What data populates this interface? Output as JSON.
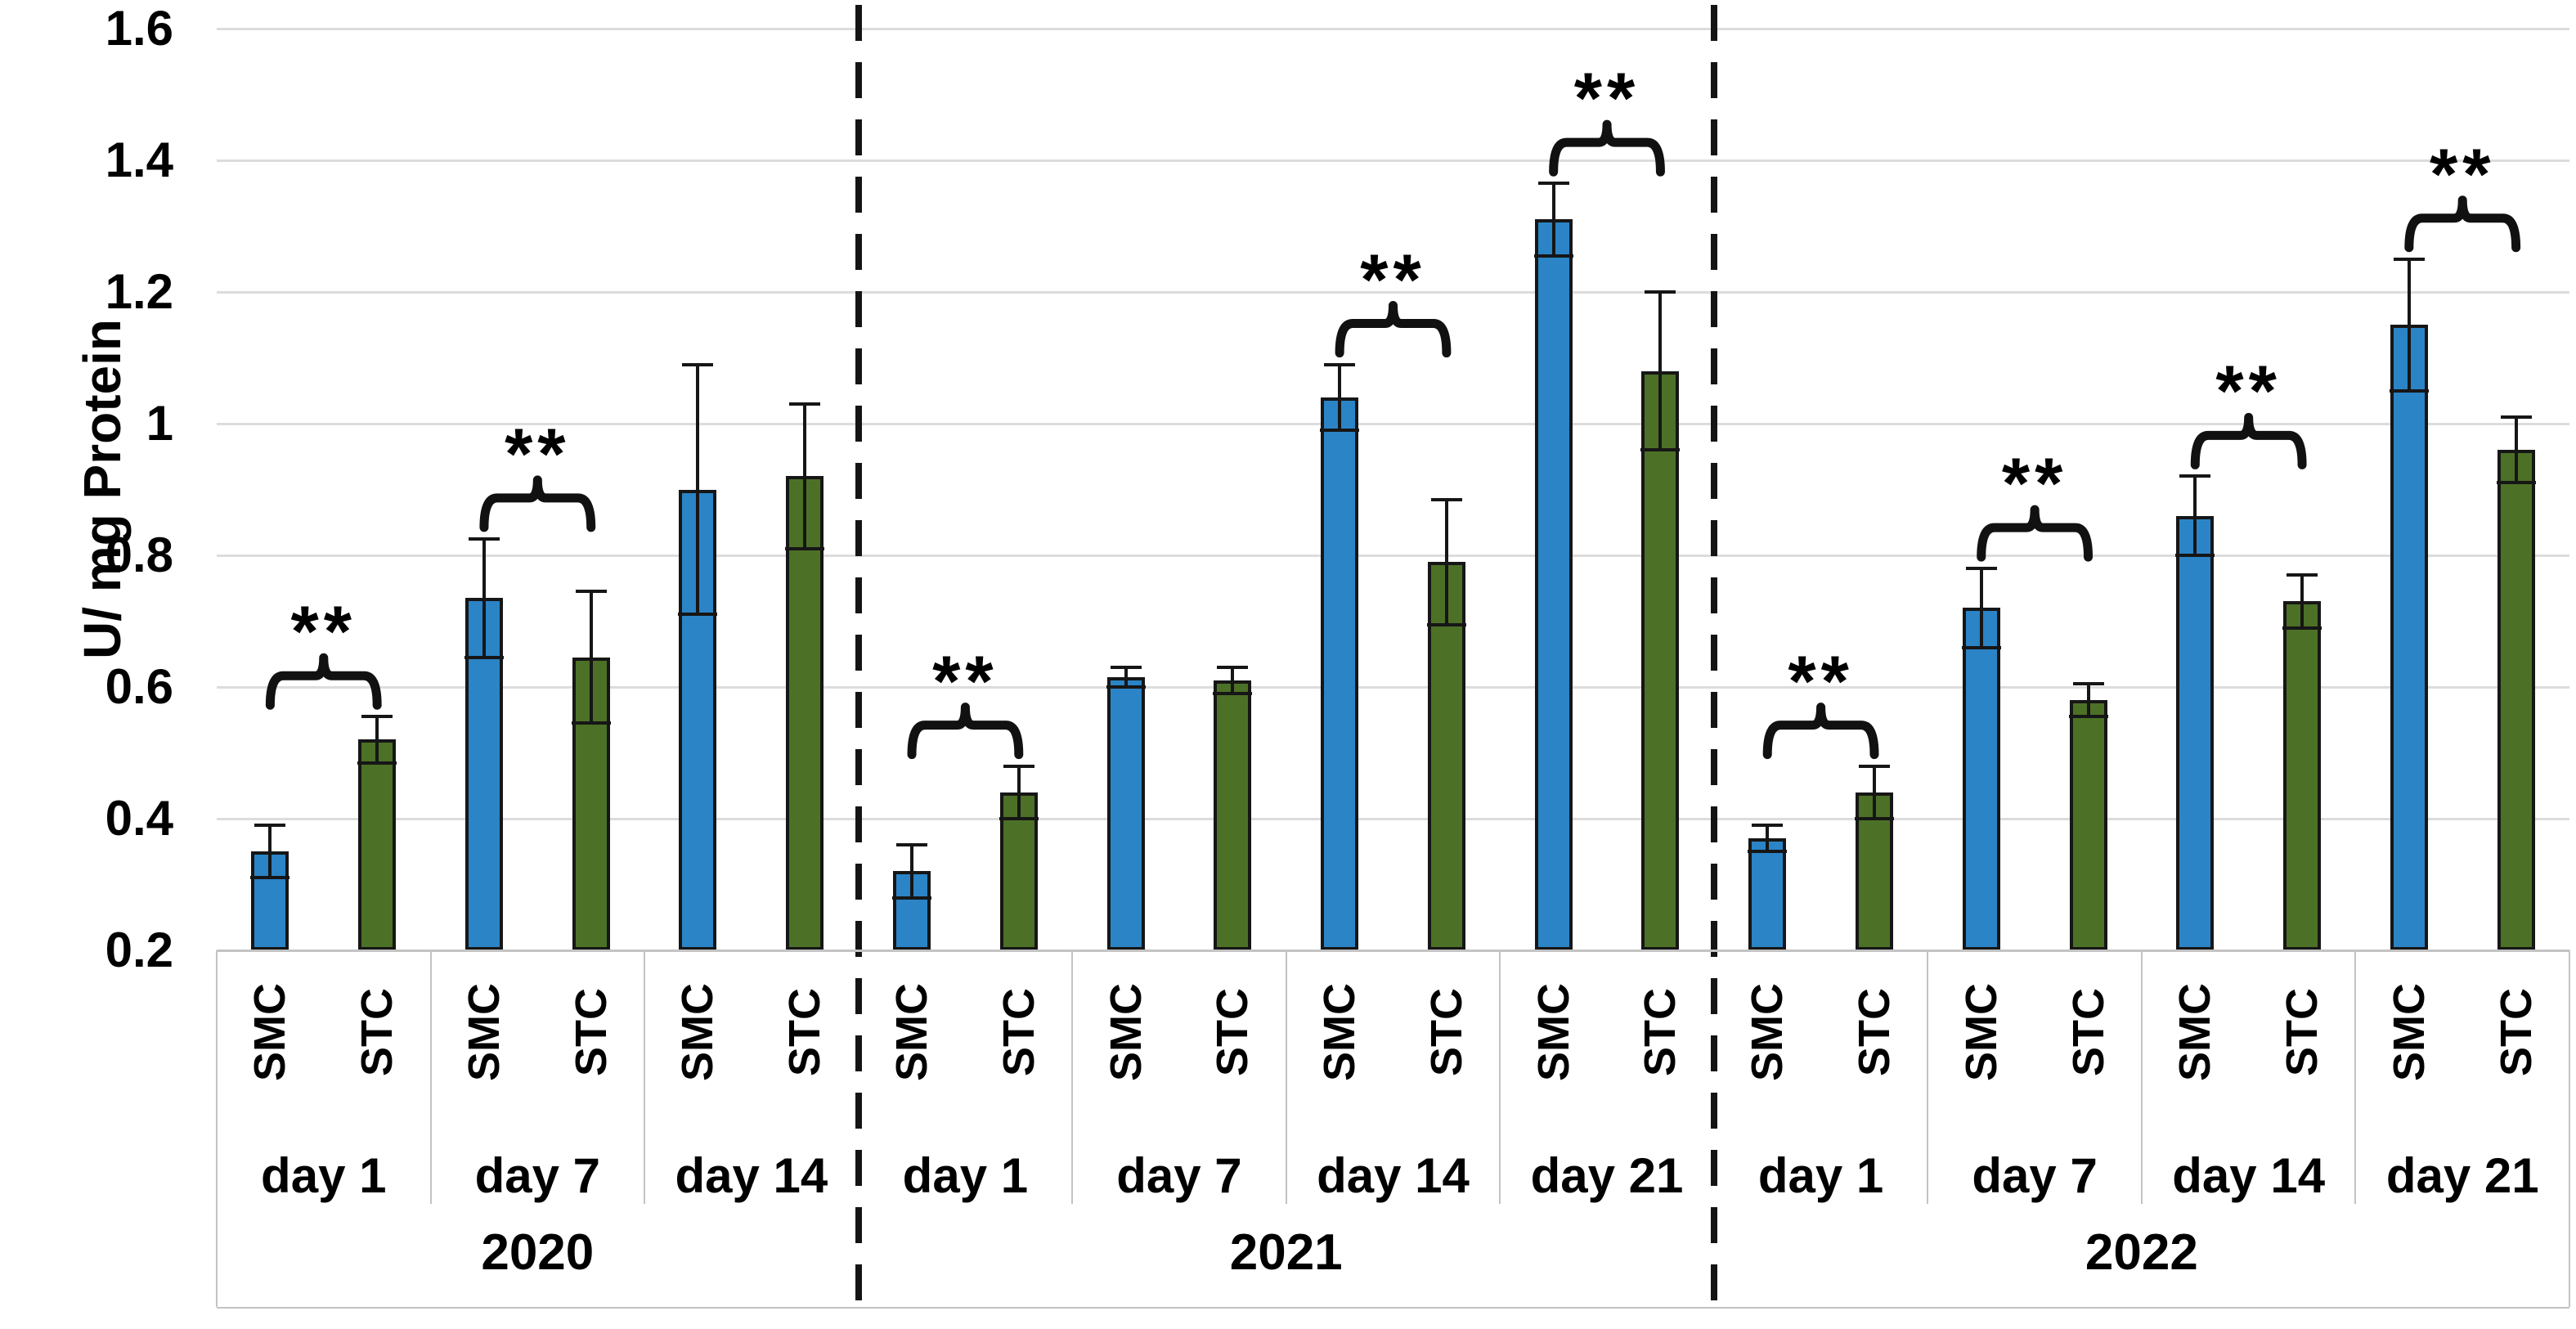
{
  "figure": {
    "background": "#ffffff"
  },
  "chart_data": {
    "type": "bar",
    "title": "",
    "xlabel": "",
    "ylabel": "U/ mg Protein",
    "ylim": [
      0.2,
      1.6
    ],
    "yticks": [
      0.2,
      0.4,
      0.6,
      0.8,
      1,
      1.2,
      1.4,
      1.6
    ],
    "ytick_labels": [
      "0.2",
      "0.4",
      "0.6",
      "0.8",
      "1",
      "1.2",
      "1.4",
      "1.6"
    ],
    "grid": "horizontal",
    "legend": "none",
    "error_bars": true,
    "significance_marker": "**",
    "series": [
      {
        "name": "SMC",
        "color": "#2B84C6"
      },
      {
        "name": "STC",
        "color": "#4C7126"
      }
    ],
    "style": {
      "bar_outline": "#161616",
      "gridline_color": "#dcdcdc",
      "axis_box_color": "#c3c3c3",
      "dash_color": "#141414",
      "bracket_color": "#111111",
      "text_color": "#000000"
    },
    "groups": [
      {
        "year": "2020",
        "days": [
          {
            "day": "day 1",
            "significance": "**",
            "bars": [
              {
                "series": "SMC",
                "value": 0.35,
                "error": 0.04
              },
              {
                "series": "STC",
                "value": 0.52,
                "error": 0.035
              }
            ]
          },
          {
            "day": "day 7",
            "significance": "**",
            "bars": [
              {
                "series": "SMC",
                "value": 0.735,
                "error": 0.09
              },
              {
                "series": "STC",
                "value": 0.645,
                "error": 0.1
              }
            ]
          },
          {
            "day": "day 14",
            "significance": null,
            "bars": [
              {
                "series": "SMC",
                "value": 0.9,
                "error": 0.19
              },
              {
                "series": "STC",
                "value": 0.92,
                "error": 0.11
              }
            ]
          }
        ]
      },
      {
        "year": "2021",
        "days": [
          {
            "day": "day 1",
            "significance": "**",
            "bars": [
              {
                "series": "SMC",
                "value": 0.32,
                "error": 0.04
              },
              {
                "series": "STC",
                "value": 0.44,
                "error": 0.04
              }
            ]
          },
          {
            "day": "day 7",
            "significance": null,
            "bars": [
              {
                "series": "SMC",
                "value": 0.615,
                "error": 0.015
              },
              {
                "series": "STC",
                "value": 0.61,
                "error": 0.02
              }
            ]
          },
          {
            "day": "day 14",
            "significance": "**",
            "bars": [
              {
                "series": "SMC",
                "value": 1.04,
                "error": 0.05
              },
              {
                "series": "STC",
                "value": 0.79,
                "error": 0.095
              }
            ]
          },
          {
            "day": "day 21",
            "significance": "**",
            "bars": [
              {
                "series": "SMC",
                "value": 1.31,
                "error": 0.055
              },
              {
                "series": "STC",
                "value": 1.08,
                "error": 0.12
              }
            ]
          }
        ]
      },
      {
        "year": "2022",
        "days": [
          {
            "day": "day 1",
            "significance": "**",
            "bars": [
              {
                "series": "SMC",
                "value": 0.37,
                "error": 0.02
              },
              {
                "series": "STC",
                "value": 0.44,
                "error": 0.04
              }
            ]
          },
          {
            "day": "day 7",
            "significance": "**",
            "bars": [
              {
                "series": "SMC",
                "value": 0.72,
                "error": 0.06
              },
              {
                "series": "STC",
                "value": 0.58,
                "error": 0.025
              }
            ]
          },
          {
            "day": "day 14",
            "significance": "**",
            "bars": [
              {
                "series": "SMC",
                "value": 0.86,
                "error": 0.06
              },
              {
                "series": "STC",
                "value": 0.73,
                "error": 0.04
              }
            ]
          },
          {
            "day": "day 21",
            "significance": "**",
            "bars": [
              {
                "series": "SMC",
                "value": 1.15,
                "error": 0.1
              },
              {
                "series": "STC",
                "value": 0.96,
                "error": 0.05
              }
            ]
          }
        ]
      }
    ]
  }
}
